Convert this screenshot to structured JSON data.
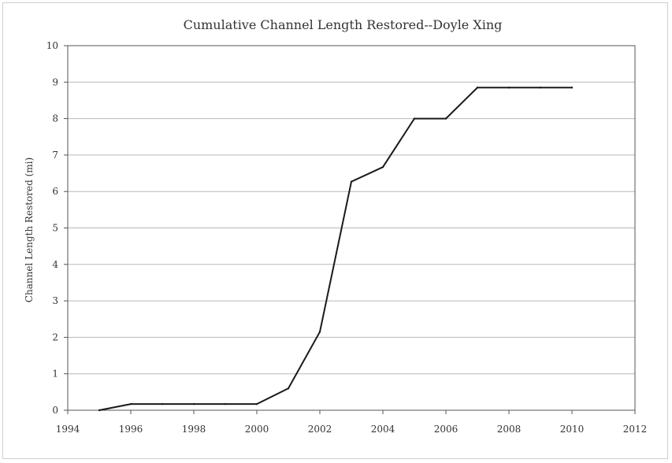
{
  "chart_data": {
    "type": "line",
    "title": "Cumulative Channel Length Restored--Doyle Xing",
    "xlabel": "",
    "ylabel": "Channel Length Restored (mi)",
    "xlim": [
      1994,
      2012
    ],
    "ylim": [
      0,
      10
    ],
    "x_ticks": [
      1994,
      1996,
      1998,
      2000,
      2002,
      2004,
      2006,
      2008,
      2010,
      2012
    ],
    "y_ticks": [
      0,
      1,
      2,
      3,
      4,
      5,
      6,
      7,
      8,
      9,
      10
    ],
    "grid": "horizontal",
    "legend": "none",
    "colors": {
      "line": "#1a1a1a",
      "grid": "#b8b8b8",
      "axis": "#555555"
    },
    "series": [
      {
        "x": [
          1995,
          1996,
          1997,
          1998,
          1999,
          2000,
          2001,
          2002,
          2003,
          2004,
          2005,
          2006,
          2007,
          2008,
          2009,
          2010
        ],
        "values": [
          0,
          0.17,
          0.17,
          0.17,
          0.17,
          0.17,
          0.6,
          2.15,
          6.27,
          6.67,
          8.0,
          8.0,
          8.85,
          8.85,
          8.85,
          8.85
        ]
      }
    ]
  }
}
